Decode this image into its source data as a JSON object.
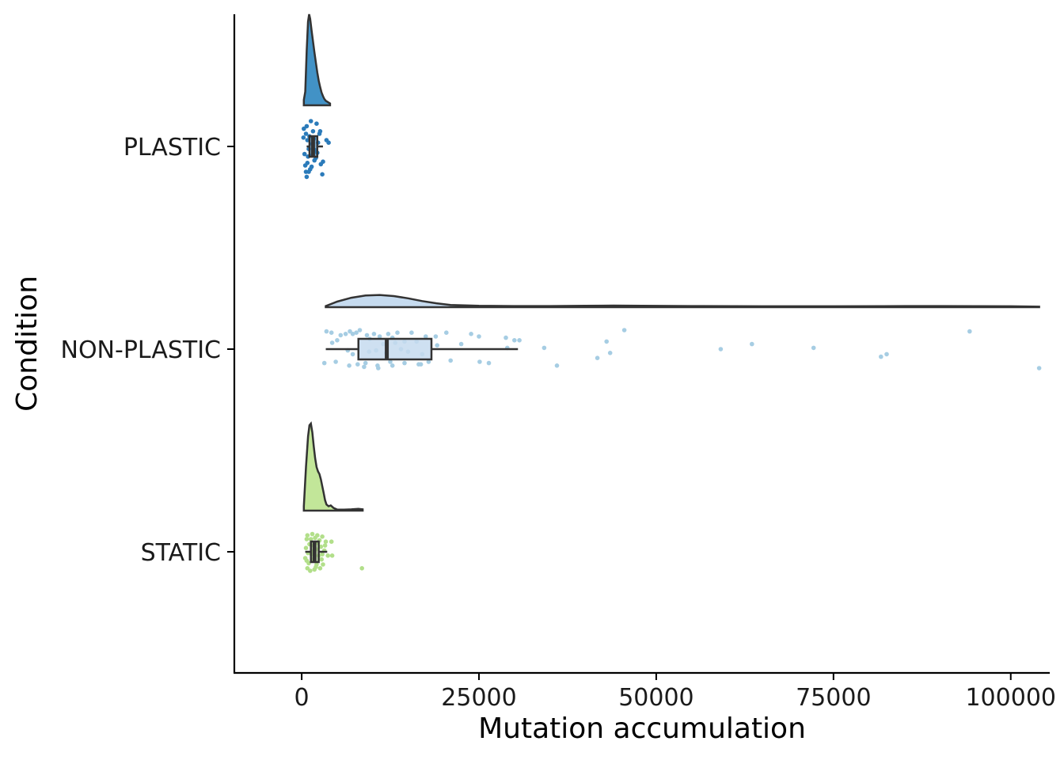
{
  "chart_data": {
    "type": "raincloud",
    "xlabel": "Mutation accumulation",
    "ylabel": "Condition",
    "xlim": [
      -9500,
      105500
    ],
    "xticks": [
      0,
      25000,
      50000,
      75000,
      100000
    ],
    "xtick_labels": [
      "0",
      "25000",
      "50000",
      "75000",
      "100000"
    ],
    "grid": false,
    "legend": "none",
    "categories": [
      "PLASTIC",
      "NON-PLASTIC",
      "STATIC"
    ],
    "series": [
      {
        "color": "#2b7bba",
        "fill": "#4292c6",
        "box": {
          "lower_whisker": 700,
          "q1": 1100,
          "median": 1600,
          "q3": 2200,
          "upper_whisker": 3000
        },
        "density": [
          [
            300,
            0.06
          ],
          [
            500,
            0.15
          ],
          [
            700,
            0.6
          ],
          [
            900,
            0.92
          ],
          [
            1050,
            1.0
          ],
          [
            1200,
            0.95
          ],
          [
            1400,
            0.82
          ],
          [
            1600,
            0.7
          ],
          [
            1800,
            0.58
          ],
          [
            2000,
            0.47
          ],
          [
            2200,
            0.36
          ],
          [
            2400,
            0.27
          ],
          [
            2600,
            0.2
          ],
          [
            2800,
            0.14
          ],
          [
            3000,
            0.1
          ],
          [
            3200,
            0.07
          ],
          [
            3400,
            0.05
          ],
          [
            3600,
            0.04
          ],
          [
            3800,
            0.03
          ],
          [
            4000,
            0.02
          ]
        ],
        "points": [
          [
            250,
            0.07
          ],
          [
            700,
            0.16
          ],
          [
            1300,
            0.2
          ],
          [
            2100,
            0.18
          ],
          [
            2500,
            0.1
          ],
          [
            800,
            0.05
          ],
          [
            1500,
            0.02
          ],
          [
            1900,
            -0.03
          ],
          [
            900,
            -0.08
          ],
          [
            3000,
            -0.12
          ],
          [
            500,
            -0.15
          ],
          [
            1200,
            -0.18
          ],
          [
            2700,
            -0.14
          ],
          [
            600,
            -0.2
          ],
          [
            1800,
            -0.11
          ],
          [
            1000,
            -0.02
          ],
          [
            2300,
            0.03
          ],
          [
            400,
            -0.06
          ],
          [
            1600,
            0.12
          ],
          [
            3500,
            0.05
          ],
          [
            700,
            -0.24
          ],
          [
            2900,
            -0.22
          ],
          [
            1100,
            0.08
          ],
          [
            2000,
            -0.09
          ],
          [
            1400,
            -0.16
          ],
          [
            800,
            -0.13
          ],
          [
            1700,
            0.06
          ],
          [
            2200,
            -0.05
          ],
          [
            300,
            0.14
          ],
          [
            2600,
            0.12
          ],
          [
            1000,
            -0.2
          ],
          [
            1500,
            -0.07
          ],
          [
            600,
            0.1
          ],
          [
            3800,
            0.03
          ]
        ]
      },
      {
        "color": "#a6cde3",
        "fill": "#c6dbef",
        "box": {
          "lower_whisker": 3400,
          "q1": 8000,
          "median": 12000,
          "q3": 18300,
          "upper_whisker": 30500
        },
        "density": [
          [
            3400,
            0.02
          ],
          [
            5000,
            0.1
          ],
          [
            7000,
            0.17
          ],
          [
            9000,
            0.21
          ],
          [
            11000,
            0.22
          ],
          [
            13000,
            0.2
          ],
          [
            15000,
            0.16
          ],
          [
            17000,
            0.11
          ],
          [
            19000,
            0.07
          ],
          [
            21000,
            0.04
          ],
          [
            25000,
            0.025
          ],
          [
            30000,
            0.02
          ],
          [
            35000,
            0.02
          ],
          [
            40000,
            0.025
          ],
          [
            44000,
            0.028
          ],
          [
            48000,
            0.025
          ],
          [
            55000,
            0.02
          ],
          [
            65000,
            0.015
          ],
          [
            75000,
            0.015
          ],
          [
            82000,
            0.018
          ],
          [
            85000,
            0.02
          ],
          [
            90000,
            0.02
          ],
          [
            95000,
            0.018
          ],
          [
            100000,
            0.015
          ],
          [
            104000,
            0.01
          ]
        ],
        "points": [
          [
            3500,
            0.14
          ],
          [
            4200,
            0.13
          ],
          [
            5500,
            0.11
          ],
          [
            6200,
            0.12
          ],
          [
            6800,
            0.14
          ],
          [
            7200,
            0.12
          ],
          [
            7700,
            0.13
          ],
          [
            8200,
            0.15
          ],
          [
            9200,
            0.11
          ],
          [
            10200,
            0.12
          ],
          [
            11000,
            0.1
          ],
          [
            12200,
            0.12
          ],
          [
            12800,
            0.09
          ],
          [
            13500,
            0.13
          ],
          [
            15500,
            0.13
          ],
          [
            17500,
            0.1
          ],
          [
            18900,
            0.1
          ],
          [
            20400,
            0.13
          ],
          [
            23900,
            0.12
          ],
          [
            28800,
            0.09
          ],
          [
            30000,
            0.07
          ],
          [
            30700,
            0.07
          ],
          [
            45500,
            0.15
          ],
          [
            94200,
            0.14
          ],
          [
            4300,
            0.05
          ],
          [
            5000,
            0.07
          ],
          [
            9600,
            0.08
          ],
          [
            11500,
            0.04
          ],
          [
            13200,
            0.05
          ],
          [
            14500,
            0.06
          ],
          [
            16200,
            0.06
          ],
          [
            19100,
            0.03
          ],
          [
            22500,
            0.04
          ],
          [
            25000,
            0.1
          ],
          [
            43000,
            0.06
          ],
          [
            63500,
            0.04
          ],
          [
            72200,
            0.01
          ],
          [
            59100,
            0
          ],
          [
            34200,
            0.01
          ],
          [
            29000,
            0.01
          ],
          [
            6500,
            -0.01
          ],
          [
            9500,
            -0.02
          ],
          [
            10500,
            -0.01
          ],
          [
            14000,
            0
          ],
          [
            15000,
            -0.02
          ],
          [
            17000,
            -0.04
          ],
          [
            7200,
            -0.04
          ],
          [
            11900,
            -0.03
          ],
          [
            43500,
            -0.03
          ],
          [
            82500,
            -0.04
          ],
          [
            81700,
            -0.06
          ],
          [
            41700,
            -0.07
          ],
          [
            3200,
            -0.11
          ],
          [
            4800,
            -0.1
          ],
          [
            6700,
            -0.13
          ],
          [
            7900,
            -0.12
          ],
          [
            9000,
            -0.11
          ],
          [
            10700,
            -0.13
          ],
          [
            12500,
            -0.1
          ],
          [
            14500,
            -0.11
          ],
          [
            16500,
            -0.12
          ],
          [
            17900,
            -0.1
          ],
          [
            21000,
            -0.09
          ],
          [
            25100,
            -0.1
          ],
          [
            36000,
            -0.13
          ],
          [
            8800,
            -0.14
          ],
          [
            10800,
            -0.15
          ],
          [
            12800,
            -0.13
          ],
          [
            16800,
            -0.12
          ],
          [
            26400,
            -0.11
          ],
          [
            104000,
            -0.15
          ]
        ]
      },
      {
        "color": "#b2df8a",
        "fill": "#c2e699",
        "box": {
          "lower_whisker": 500,
          "q1": 1300,
          "median": 1800,
          "q3": 2400,
          "upper_whisker": 3600
        },
        "density": [
          [
            300,
            0.05
          ],
          [
            600,
            0.5
          ],
          [
            900,
            0.85
          ],
          [
            1100,
            0.98
          ],
          [
            1300,
            1.0
          ],
          [
            1500,
            0.9
          ],
          [
            1700,
            0.74
          ],
          [
            1900,
            0.6
          ],
          [
            2100,
            0.5
          ],
          [
            2300,
            0.45
          ],
          [
            2500,
            0.42
          ],
          [
            2700,
            0.36
          ],
          [
            2900,
            0.28
          ],
          [
            3100,
            0.2
          ],
          [
            3300,
            0.12
          ],
          [
            3500,
            0.07
          ],
          [
            3800,
            0.05
          ],
          [
            4100,
            0.06
          ],
          [
            4500,
            0.03
          ],
          [
            5000,
            0.012
          ],
          [
            6000,
            0.012
          ],
          [
            7000,
            0.015
          ],
          [
            8000,
            0.02
          ],
          [
            8600,
            0.015
          ]
        ],
        "points": [
          [
            800,
            0.13
          ],
          [
            1500,
            0.14
          ],
          [
            2200,
            0.13
          ],
          [
            2900,
            0.12
          ],
          [
            700,
            0.1
          ],
          [
            1900,
            0.11
          ],
          [
            2500,
            0.09
          ],
          [
            3400,
            0.08
          ],
          [
            4200,
            0.08
          ],
          [
            1100,
            0.06
          ],
          [
            1700,
            0.05
          ],
          [
            2700,
            0.04
          ],
          [
            600,
            0.03
          ],
          [
            2000,
            0.02
          ],
          [
            3200,
            0.01
          ],
          [
            900,
            -0.01
          ],
          [
            1400,
            -0.02
          ],
          [
            2400,
            -0.03
          ],
          [
            3700,
            -0.03
          ],
          [
            500,
            -0.05
          ],
          [
            1600,
            -0.06
          ],
          [
            2800,
            -0.06
          ],
          [
            4300,
            -0.03
          ],
          [
            1000,
            -0.09
          ],
          [
            2100,
            -0.1
          ],
          [
            3000,
            -0.1
          ],
          [
            800,
            -0.13
          ],
          [
            1800,
            -0.14
          ],
          [
            2600,
            -0.13
          ],
          [
            1200,
            -0.15
          ],
          [
            8500,
            -0.13
          ],
          [
            1300,
            0.1
          ],
          [
            2300,
            0.07
          ],
          [
            3300,
            0.05
          ],
          [
            700,
            -0.07
          ],
          [
            2900,
            -0.02
          ],
          [
            1500,
            0.0
          ],
          [
            2000,
            -0.12
          ]
        ]
      }
    ]
  }
}
